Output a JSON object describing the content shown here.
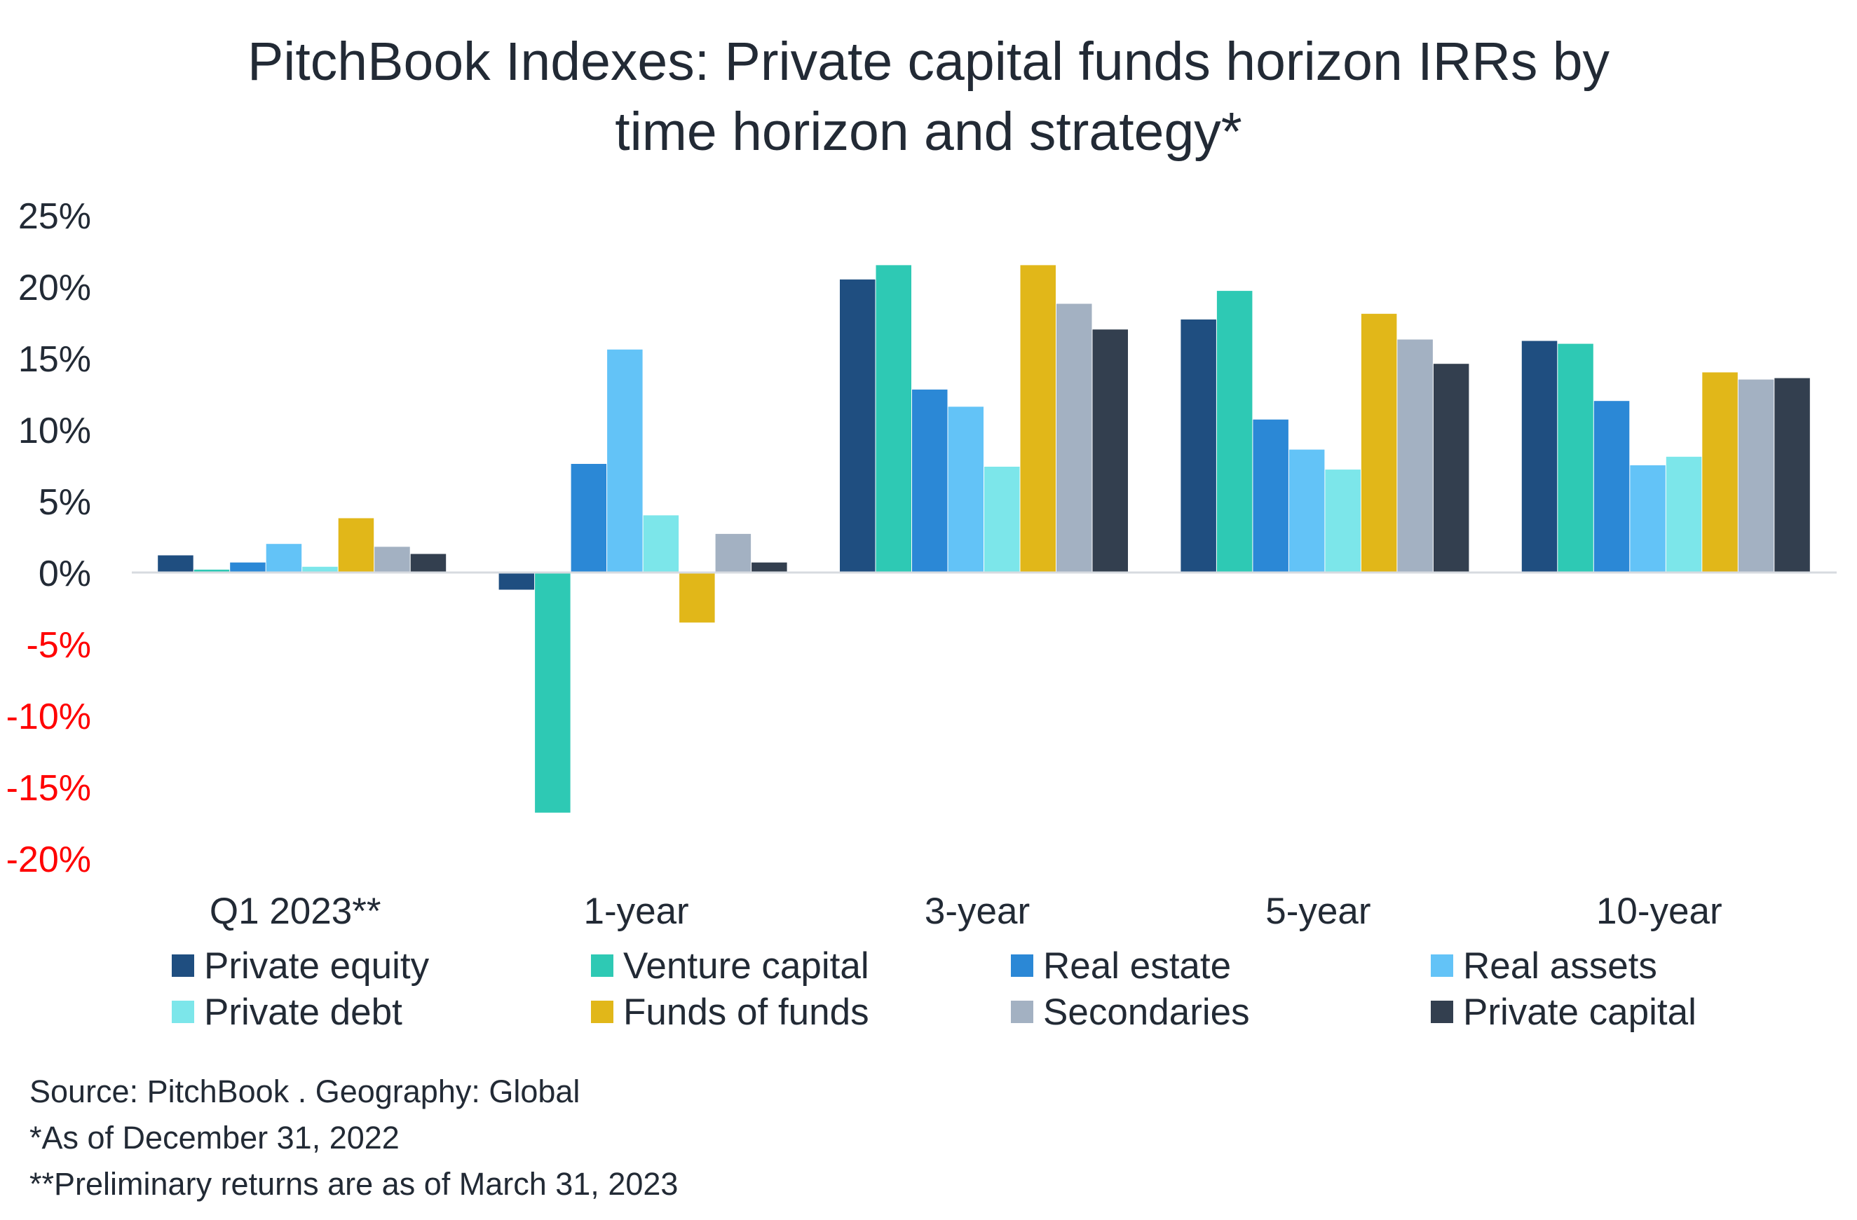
{
  "title_line1": "PitchBook Indexes: Private capital funds horizon IRRs by",
  "title_line2": "time horizon and strategy*",
  "chart_data": {
    "type": "bar",
    "categories": [
      "Q1 2023**",
      "1-year",
      "3-year",
      "5-year",
      "10-year"
    ],
    "ylim": [
      -20,
      25
    ],
    "yticks": [
      "25%",
      "20%",
      "15%",
      "10%",
      "5%",
      "0%",
      "-5%",
      "-10%",
      "-15%",
      "-20%"
    ],
    "ytick_values": [
      25,
      20,
      15,
      10,
      5,
      0,
      -5,
      -10,
      -15,
      -20
    ],
    "negative_tick_color": "#ff0000",
    "grid": false,
    "legend_position": "bottom",
    "series": [
      {
        "name": "Private equity",
        "color": "#1f4e80",
        "values": [
          1.2,
          -1.2,
          20.5,
          17.7,
          16.2
        ]
      },
      {
        "name": "Venture capital",
        "color": "#2ec9b4",
        "values": [
          0.2,
          -16.8,
          21.5,
          19.7,
          16.0
        ]
      },
      {
        "name": "Real estate",
        "color": "#2b88d6",
        "values": [
          0.7,
          7.6,
          12.8,
          10.7,
          12.0
        ]
      },
      {
        "name": "Real assets",
        "color": "#63c3f7",
        "values": [
          2.0,
          15.6,
          11.6,
          8.6,
          7.5
        ]
      },
      {
        "name": "Private debt",
        "color": "#7ce6ea",
        "values": [
          0.4,
          4.0,
          7.4,
          7.2,
          8.1
        ]
      },
      {
        "name": "Funds of funds",
        "color": "#e1b719",
        "values": [
          3.8,
          -3.5,
          21.5,
          18.1,
          14.0
        ]
      },
      {
        "name": "Secondaries",
        "color": "#a3b1c2",
        "values": [
          1.8,
          2.7,
          18.8,
          16.3,
          13.5
        ]
      },
      {
        "name": "Private capital",
        "color": "#333f4f",
        "values": [
          1.3,
          0.7,
          17.0,
          14.6,
          13.6
        ]
      }
    ]
  },
  "notes": [
    "Source: PitchBook . Geography: Global",
    "*As of December 31, 2022",
    "**Preliminary returns are as of March 31, 2023"
  ]
}
